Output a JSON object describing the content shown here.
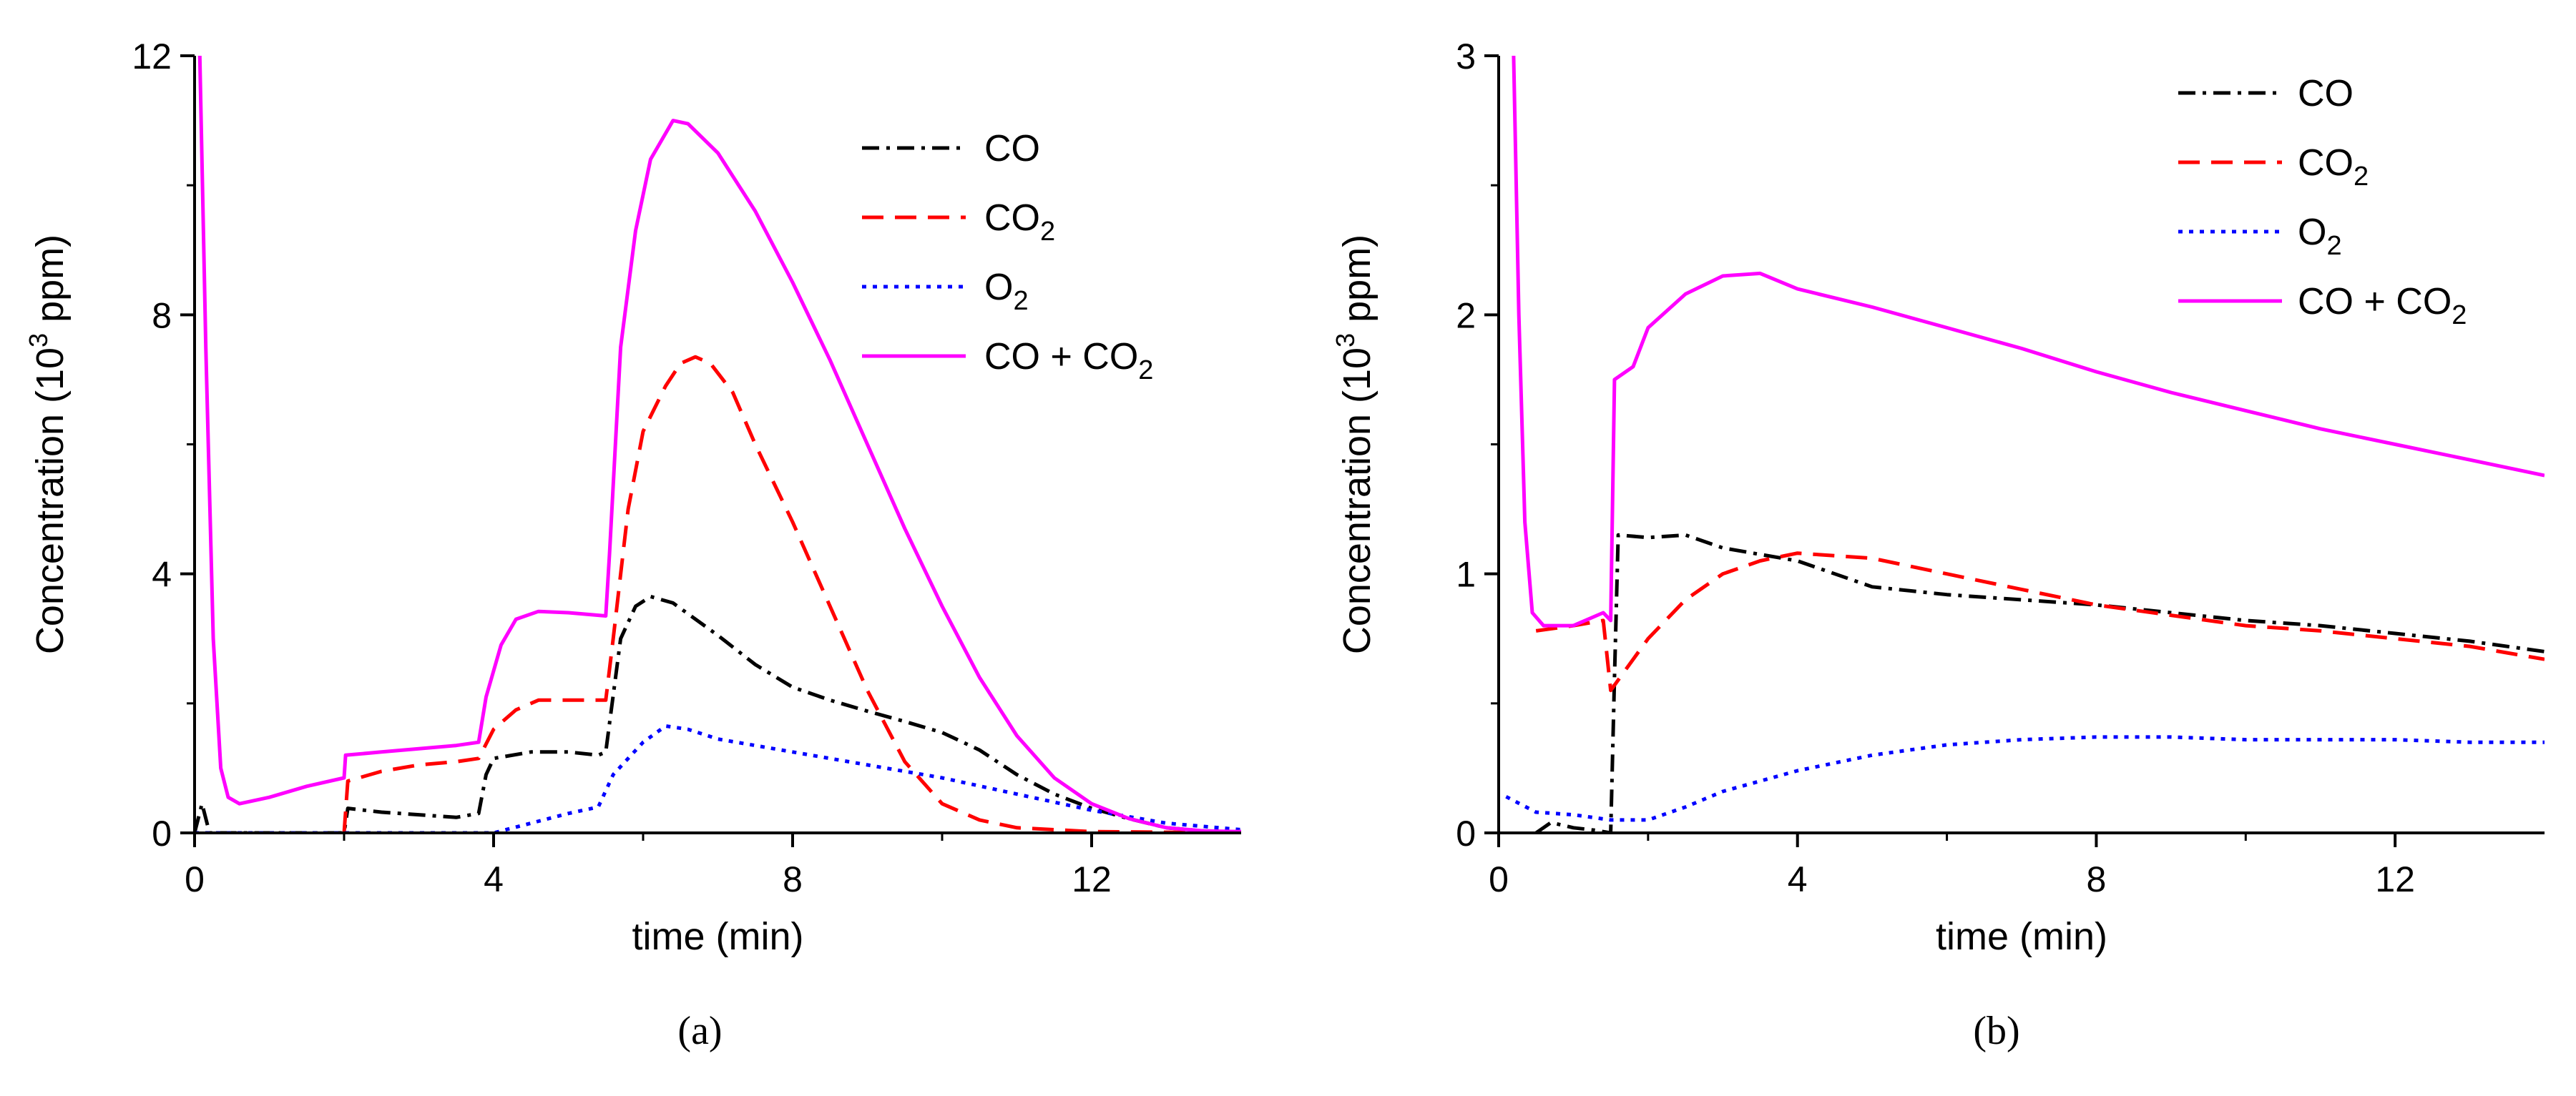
{
  "chart_data": [
    {
      "type": "line",
      "caption": "(a)",
      "xlabel": "time (min)",
      "ylabel_pre": "Concentration (10",
      "ylabel_sup": "3",
      "ylabel_post": " ppm)",
      "xlim": [
        0,
        14
      ],
      "ylim": [
        0,
        12
      ],
      "xticks": [
        0,
        4,
        8,
        12
      ],
      "yticks": [
        0,
        4,
        8,
        12
      ],
      "legend_position": "top-right",
      "series": [
        {
          "name": "CO",
          "legend_base": "CO",
          "legend_sub": "",
          "legend_tail": "",
          "color": "#000000",
          "dash": "24,10,5,10",
          "points": [
            [
              0,
              0
            ],
            [
              0.1,
              0.45
            ],
            [
              0.2,
              0
            ],
            [
              2,
              0
            ],
            [
              2.05,
              0.38
            ],
            [
              2.5,
              0.32
            ],
            [
              3,
              0.28
            ],
            [
              3.5,
              0.24
            ],
            [
              3.8,
              0.3
            ],
            [
              3.9,
              0.9
            ],
            [
              4,
              1.15
            ],
            [
              4.5,
              1.25
            ],
            [
              5,
              1.25
            ],
            [
              5.4,
              1.2
            ],
            [
              5.5,
              1.25
            ],
            [
              5.7,
              3.0
            ],
            [
              5.9,
              3.5
            ],
            [
              6.1,
              3.65
            ],
            [
              6.4,
              3.55
            ],
            [
              7,
              3.05
            ],
            [
              7.5,
              2.6
            ],
            [
              8,
              2.25
            ],
            [
              8.5,
              2.05
            ],
            [
              9,
              1.88
            ],
            [
              9.5,
              1.72
            ],
            [
              10,
              1.55
            ],
            [
              10.5,
              1.28
            ],
            [
              11,
              0.9
            ],
            [
              11.5,
              0.6
            ],
            [
              12,
              0.38
            ],
            [
              12.5,
              0.22
            ],
            [
              13,
              0.08
            ],
            [
              13.5,
              0.03
            ],
            [
              14,
              0.02
            ]
          ]
        },
        {
          "name": "CO2",
          "legend_base": "CO",
          "legend_sub": "2",
          "legend_tail": "",
          "color": "#ff0000",
          "dash": "30,16",
          "points": [
            [
              2,
              0
            ],
            [
              2.05,
              0.8
            ],
            [
              2.5,
              0.95
            ],
            [
              3,
              1.05
            ],
            [
              3.5,
              1.1
            ],
            [
              3.8,
              1.15
            ],
            [
              4,
              1.6
            ],
            [
              4.3,
              1.9
            ],
            [
              4.6,
              2.05
            ],
            [
              5,
              2.05
            ],
            [
              5.5,
              2.05
            ],
            [
              5.6,
              3.0
            ],
            [
              5.8,
              5.0
            ],
            [
              6,
              6.2
            ],
            [
              6.3,
              6.9
            ],
            [
              6.5,
              7.25
            ],
            [
              6.7,
              7.35
            ],
            [
              6.9,
              7.25
            ],
            [
              7.2,
              6.8
            ],
            [
              7.5,
              6.0
            ],
            [
              8,
              4.8
            ],
            [
              8.5,
              3.5
            ],
            [
              9,
              2.2
            ],
            [
              9.5,
              1.1
            ],
            [
              10,
              0.45
            ],
            [
              10.5,
              0.2
            ],
            [
              11,
              0.08
            ],
            [
              12,
              0.02
            ],
            [
              14,
              0
            ]
          ]
        },
        {
          "name": "O2",
          "legend_base": "O",
          "legend_sub": "2",
          "legend_tail": "",
          "color": "#0000ff",
          "dash": "6,9",
          "points": [
            [
              0,
              0
            ],
            [
              4,
              0
            ],
            [
              4.5,
              0.15
            ],
            [
              5,
              0.3
            ],
            [
              5.4,
              0.4
            ],
            [
              5.6,
              0.9
            ],
            [
              6,
              1.4
            ],
            [
              6.3,
              1.65
            ],
            [
              6.6,
              1.6
            ],
            [
              7,
              1.45
            ],
            [
              8,
              1.25
            ],
            [
              9,
              1.05
            ],
            [
              10,
              0.85
            ],
            [
              11,
              0.6
            ],
            [
              12,
              0.35
            ],
            [
              13,
              0.15
            ],
            [
              14,
              0.05
            ]
          ]
        },
        {
          "name": "CO + CO2",
          "legend_base": "CO + CO",
          "legend_sub": "2",
          "legend_tail": "",
          "color": "#ff00ff",
          "dash": "",
          "points": [
            [
              0.07,
              12
            ],
            [
              0.15,
              7.5
            ],
            [
              0.25,
              3.0
            ],
            [
              0.35,
              1.0
            ],
            [
              0.45,
              0.55
            ],
            [
              0.6,
              0.45
            ],
            [
              1,
              0.55
            ],
            [
              1.5,
              0.72
            ],
            [
              2,
              0.85
            ],
            [
              2.02,
              1.2
            ],
            [
              2.5,
              1.25
            ],
            [
              3,
              1.3
            ],
            [
              3.5,
              1.35
            ],
            [
              3.8,
              1.4
            ],
            [
              3.9,
              2.1
            ],
            [
              4.1,
              2.9
            ],
            [
              4.3,
              3.3
            ],
            [
              4.6,
              3.42
            ],
            [
              5,
              3.4
            ],
            [
              5.5,
              3.35
            ],
            [
              5.55,
              4.3
            ],
            [
              5.7,
              7.5
            ],
            [
              5.9,
              9.3
            ],
            [
              6.1,
              10.4
            ],
            [
              6.4,
              11.0
            ],
            [
              6.6,
              10.95
            ],
            [
              7,
              10.5
            ],
            [
              7.5,
              9.6
            ],
            [
              8,
              8.5
            ],
            [
              8.5,
              7.3
            ],
            [
              9,
              6.0
            ],
            [
              9.5,
              4.7
            ],
            [
              10,
              3.5
            ],
            [
              10.5,
              2.4
            ],
            [
              11,
              1.5
            ],
            [
              11.5,
              0.85
            ],
            [
              12,
              0.45
            ],
            [
              12.5,
              0.22
            ],
            [
              13,
              0.08
            ],
            [
              13.5,
              0.03
            ],
            [
              14,
              0.02
            ]
          ]
        }
      ]
    },
    {
      "type": "line",
      "caption": "(b)",
      "xlabel": "time (min)",
      "ylabel_pre": "Concentration (10",
      "ylabel_sup": "3",
      "ylabel_post": " ppm)",
      "xlim": [
        0,
        14
      ],
      "ylim": [
        0,
        3
      ],
      "xticks": [
        0,
        4,
        8,
        12
      ],
      "yticks": [
        0,
        1,
        2,
        3
      ],
      "legend_position": "top-right",
      "series": [
        {
          "name": "CO",
          "legend_base": "CO",
          "legend_sub": "",
          "legend_tail": "",
          "color": "#000000",
          "dash": "24,10,5,10",
          "points": [
            [
              0.5,
              0
            ],
            [
              0.7,
              0.04
            ],
            [
              1.0,
              0.02
            ],
            [
              1.3,
              0.01
            ],
            [
              1.5,
              0
            ],
            [
              1.55,
              0.6
            ],
            [
              1.6,
              1.15
            ],
            [
              2,
              1.14
            ],
            [
              2.5,
              1.15
            ],
            [
              3,
              1.1
            ],
            [
              4,
              1.05
            ],
            [
              5,
              0.95
            ],
            [
              6,
              0.92
            ],
            [
              7,
              0.9
            ],
            [
              8,
              0.88
            ],
            [
              9,
              0.85
            ],
            [
              10,
              0.82
            ],
            [
              11,
              0.8
            ],
            [
              12,
              0.77
            ],
            [
              13,
              0.74
            ],
            [
              14,
              0.7
            ]
          ]
        },
        {
          "name": "CO2",
          "legend_base": "CO",
          "legend_sub": "2",
          "legend_tail": "",
          "color": "#ff0000",
          "dash": "30,16",
          "points": [
            [
              0.5,
              0.78
            ],
            [
              1,
              0.8
            ],
            [
              1.4,
              0.82
            ],
            [
              1.5,
              0.55
            ],
            [
              2,
              0.75
            ],
            [
              2.5,
              0.9
            ],
            [
              3,
              1.0
            ],
            [
              3.5,
              1.05
            ],
            [
              4,
              1.08
            ],
            [
              5,
              1.06
            ],
            [
              6,
              1.0
            ],
            [
              7,
              0.94
            ],
            [
              8,
              0.88
            ],
            [
              9,
              0.84
            ],
            [
              10,
              0.8
            ],
            [
              11,
              0.78
            ],
            [
              12,
              0.75
            ],
            [
              13,
              0.72
            ],
            [
              14,
              0.67
            ]
          ]
        },
        {
          "name": "O2",
          "legend_base": "O",
          "legend_sub": "2",
          "legend_tail": "",
          "color": "#0000ff",
          "dash": "6,9",
          "points": [
            [
              0.1,
              0.14
            ],
            [
              0.5,
              0.08
            ],
            [
              1,
              0.07
            ],
            [
              1.5,
              0.05
            ],
            [
              2,
              0.05
            ],
            [
              2.5,
              0.1
            ],
            [
              3,
              0.16
            ],
            [
              4,
              0.24
            ],
            [
              5,
              0.3
            ],
            [
              6,
              0.34
            ],
            [
              7,
              0.36
            ],
            [
              8,
              0.37
            ],
            [
              9,
              0.37
            ],
            [
              10,
              0.36
            ],
            [
              11,
              0.36
            ],
            [
              12,
              0.36
            ],
            [
              13,
              0.35
            ],
            [
              14,
              0.35
            ]
          ]
        },
        {
          "name": "CO + CO2",
          "legend_base": "CO + CO",
          "legend_sub": "2",
          "legend_tail": "",
          "color": "#ff00ff",
          "dash": "",
          "points": [
            [
              0.2,
              3.0
            ],
            [
              0.27,
              2.0
            ],
            [
              0.35,
              1.2
            ],
            [
              0.45,
              0.85
            ],
            [
              0.6,
              0.8
            ],
            [
              1,
              0.8
            ],
            [
              1.4,
              0.85
            ],
            [
              1.5,
              0.82
            ],
            [
              1.55,
              1.75
            ],
            [
              1.8,
              1.8
            ],
            [
              2,
              1.95
            ],
            [
              2.5,
              2.08
            ],
            [
              3,
              2.15
            ],
            [
              3.5,
              2.16
            ],
            [
              4,
              2.1
            ],
            [
              5,
              2.03
            ],
            [
              6,
              1.95
            ],
            [
              7,
              1.87
            ],
            [
              8,
              1.78
            ],
            [
              9,
              1.7
            ],
            [
              10,
              1.63
            ],
            [
              11,
              1.56
            ],
            [
              12,
              1.5
            ],
            [
              13,
              1.44
            ],
            [
              14,
              1.38
            ]
          ]
        }
      ]
    }
  ]
}
